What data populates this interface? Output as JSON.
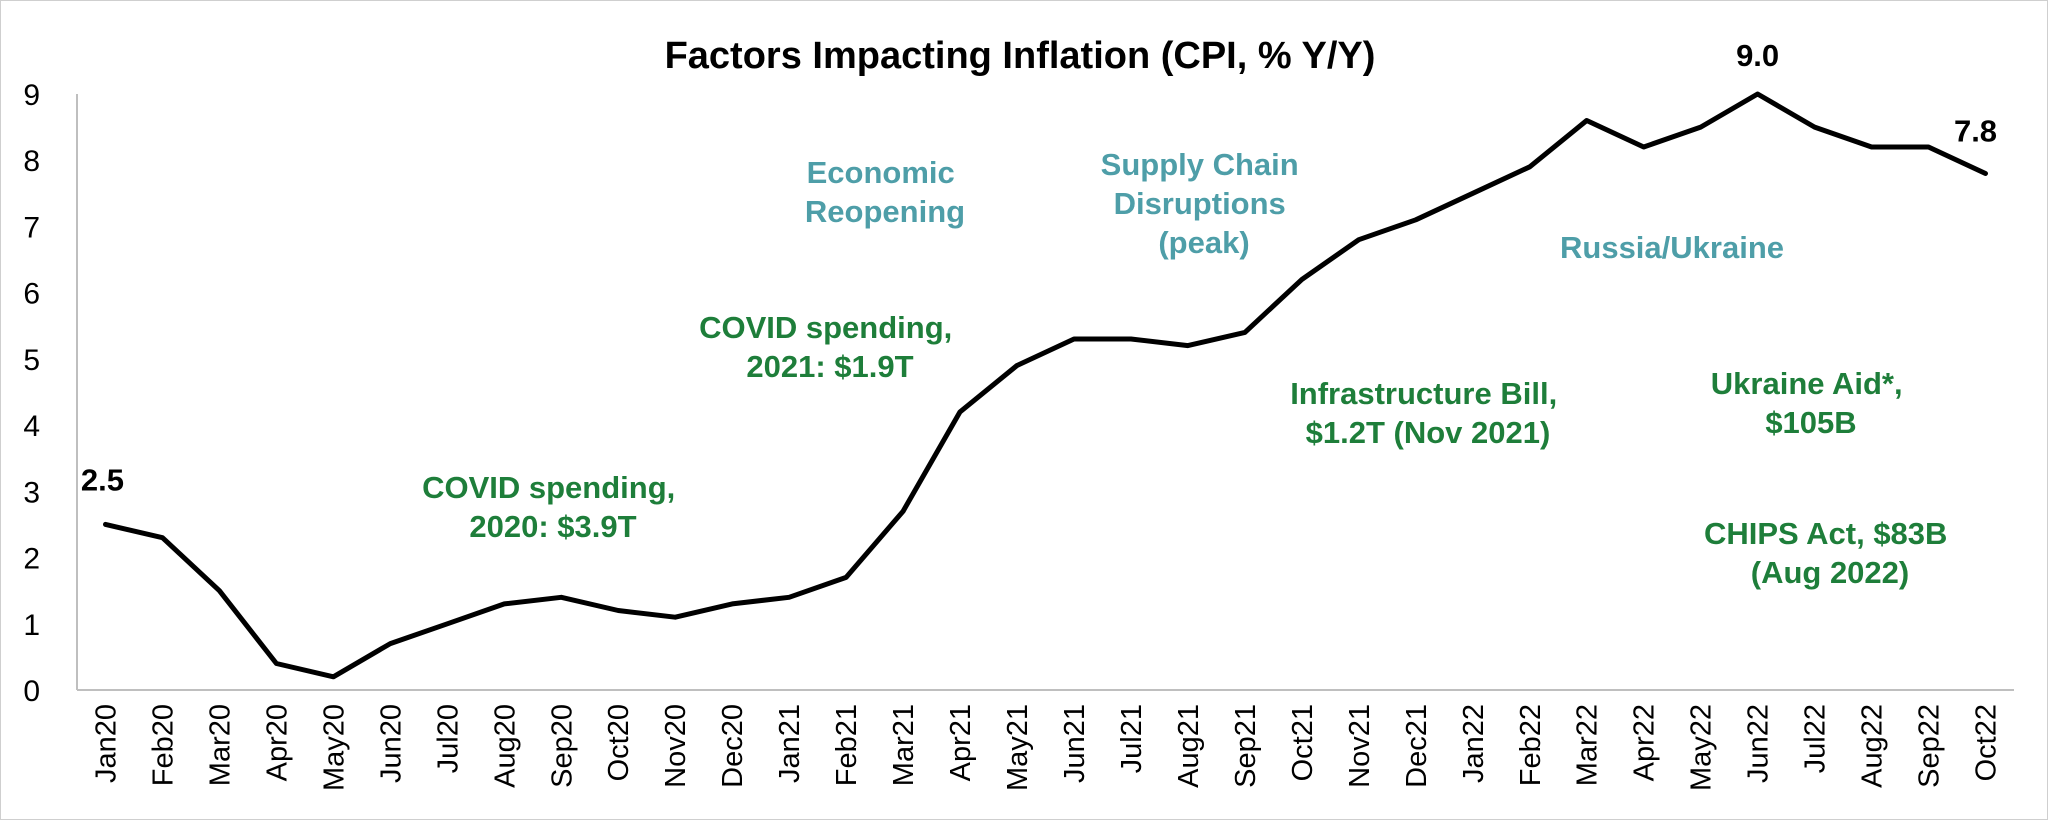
{
  "chart_data": {
    "type": "line",
    "title": "Factors Impacting Inflation (CPI, % Y/Y)",
    "xlabel": "",
    "ylabel": "",
    "ylim": [
      0,
      9
    ],
    "yticks": [
      "0",
      "1",
      "2",
      "3",
      "4",
      "5",
      "6",
      "7",
      "8",
      "9"
    ],
    "grid": false,
    "categories": [
      "Jan20",
      "Feb20",
      "Mar20",
      "Apr20",
      "May20",
      "Jun20",
      "Jul20",
      "Aug20",
      "Sep20",
      "Oct20",
      "Nov20",
      "Dec20",
      "Jan21",
      "Feb21",
      "Mar21",
      "Apr21",
      "May21",
      "Jun21",
      "Jul21",
      "Aug21",
      "Sep21",
      "Oct21",
      "Nov21",
      "Dec21",
      "Jan22",
      "Feb22",
      "Mar22",
      "Apr22",
      "May22",
      "Jun22",
      "Jul22",
      "Aug22",
      "Sep22",
      "Oct22"
    ],
    "series": [
      {
        "name": "CPI % Y/Y",
        "color": "#000000",
        "values": [
          2.5,
          2.3,
          1.5,
          0.4,
          0.2,
          0.7,
          1.0,
          1.3,
          1.4,
          1.2,
          1.1,
          1.3,
          1.4,
          1.7,
          2.7,
          4.2,
          4.9,
          5.3,
          5.3,
          5.2,
          5.4,
          6.2,
          6.8,
          7.1,
          7.5,
          7.9,
          8.6,
          8.2,
          8.5,
          9.0,
          8.5,
          8.2,
          8.2,
          7.8
        ]
      }
    ],
    "data_labels": [
      {
        "text": "2.5",
        "index": 0
      },
      {
        "text": "9.0",
        "index": 29
      },
      {
        "text": "7.8",
        "index": 33
      }
    ],
    "annotations": {
      "economic_reopening": [
        "Economic",
        "Reopening"
      ],
      "supply_chain": [
        "Supply Chain",
        "Disruptions",
        "(peak)"
      ],
      "russia_ukraine": [
        "Russia/Ukraine"
      ],
      "covid_2021": [
        "COVID spending,",
        "2021: $1.9T"
      ],
      "covid_2020": [
        "COVID spending,",
        "2020: $3.9T"
      ],
      "infrastructure": [
        "Infrastructure Bill,",
        "$1.2T (Nov 2021)"
      ],
      "ukraine_aid": [
        "Ukraine Aid*,",
        "$105B"
      ],
      "chips_act": [
        "CHIPS Act, $83B",
        "(Aug 2022)"
      ]
    },
    "colors": {
      "line": "#000000",
      "teal_annotation": "#4e9ea8",
      "green_annotation": "#1e7e3a",
      "axis": "#bfbfbf"
    }
  }
}
